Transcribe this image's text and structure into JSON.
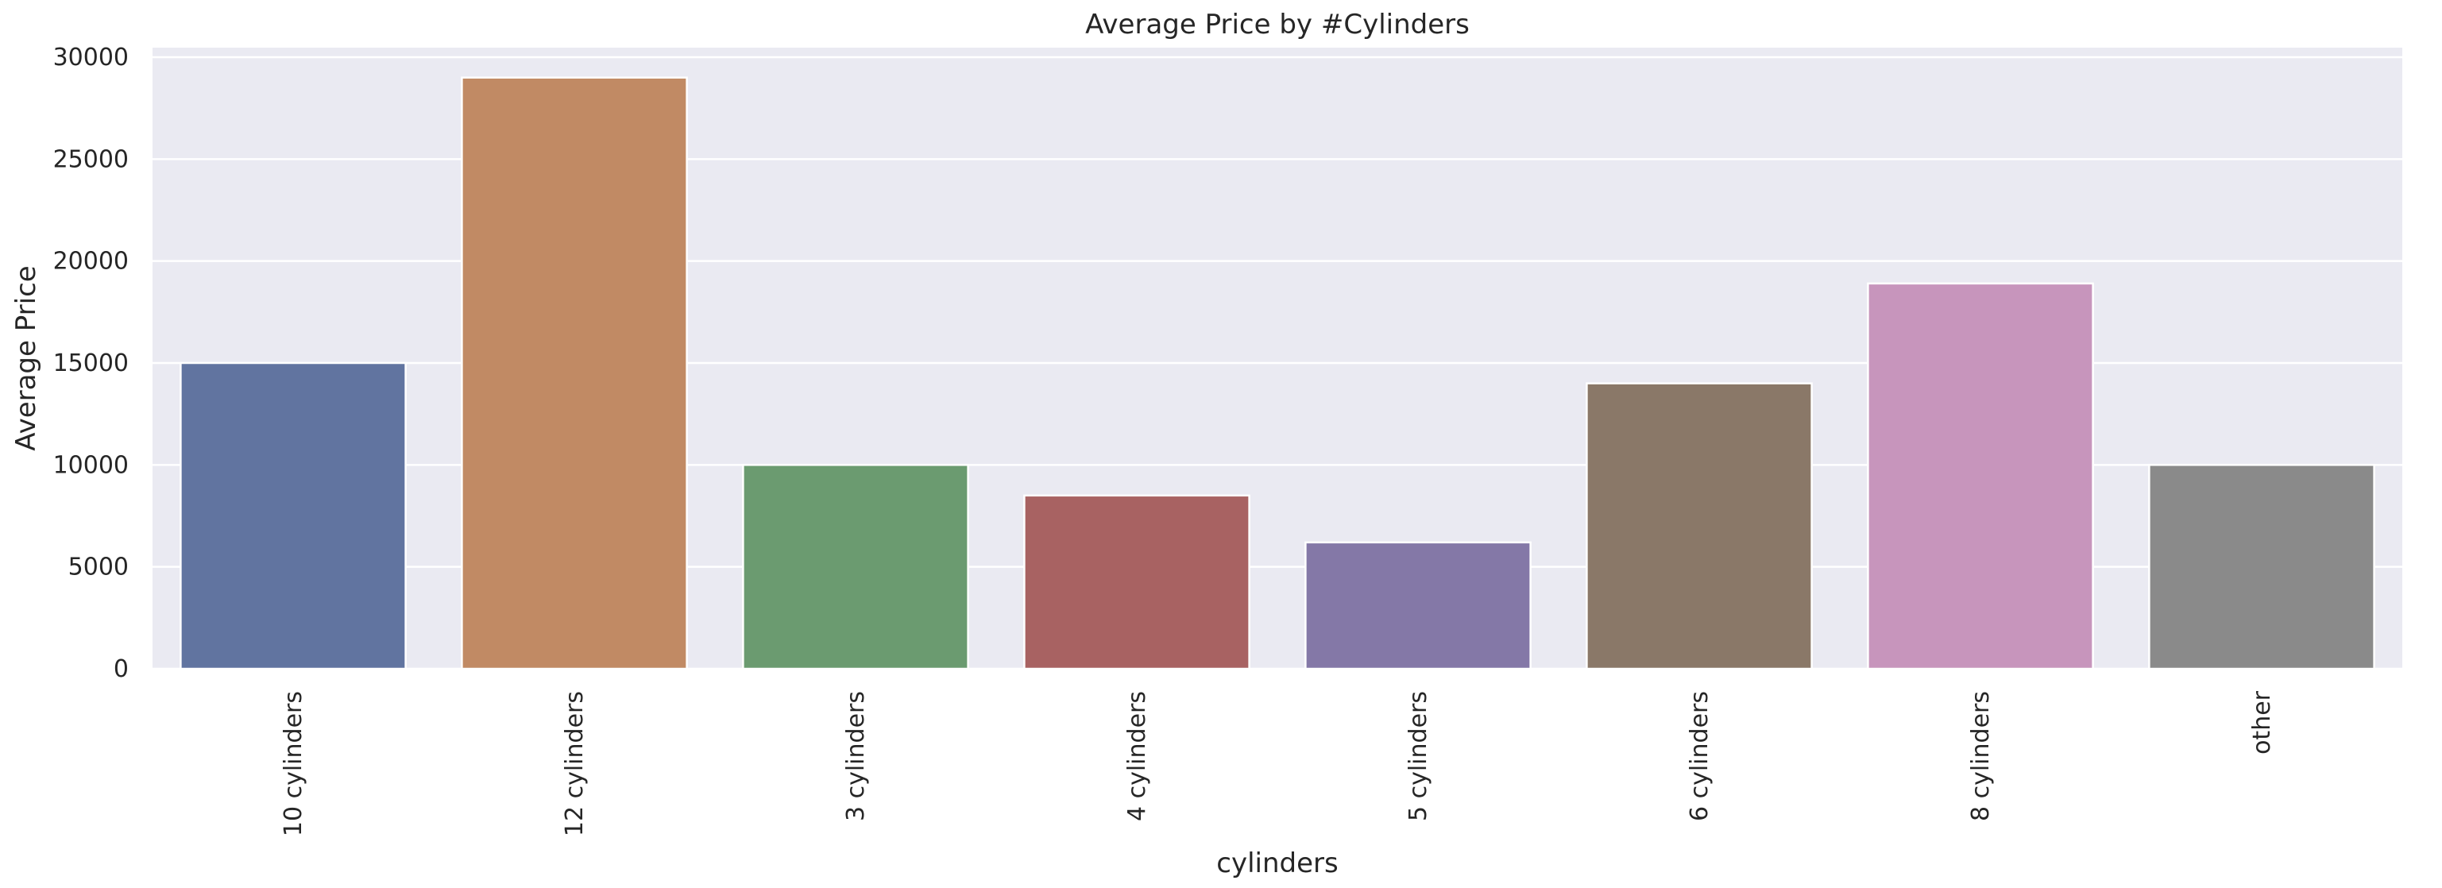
{
  "chart_data": {
    "type": "bar",
    "title": "Average Price by #Cylinders",
    "xlabel": "cylinders",
    "ylabel": "Average Price",
    "categories": [
      "10 cylinders",
      "12 cylinders",
      "3 cylinders",
      "4 cylinders",
      "5 cylinders",
      "6 cylinders",
      "8 cylinders",
      "other"
    ],
    "values": [
      15000,
      29000,
      10000,
      8500,
      6200,
      14000,
      18900,
      10000
    ],
    "colors": [
      "#6174a0",
      "#c18a64",
      "#6b9b70",
      "#a86262",
      "#8478a7",
      "#8a7868",
      "#c795bc",
      "#8a8a8a"
    ],
    "y_ticks": [
      0,
      5000,
      10000,
      15000,
      20000,
      25000,
      30000
    ],
    "ylim": [
      0,
      30000
    ],
    "grid": true,
    "legend": "none"
  }
}
